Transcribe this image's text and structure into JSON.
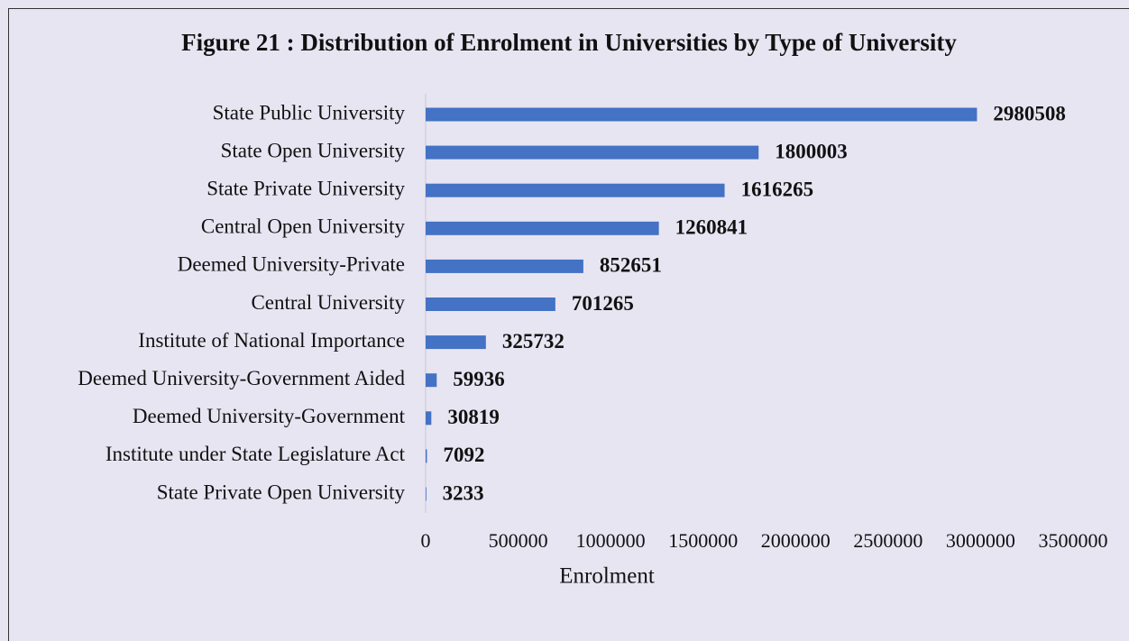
{
  "chart_data": {
    "type": "bar",
    "orientation": "horizontal",
    "title": "Figure 21 : Distribution of Enrolment in Universities by Type of University",
    "xlabel": "Enrolment",
    "categories": [
      "State Public University",
      "State Open University",
      "State Private University",
      "Central Open University",
      "Deemed University-Private",
      "Central University",
      "Institute of National Importance",
      "Deemed University-Government Aided",
      "Deemed University-Government",
      "Institute under State Legislature Act",
      "State Private Open University"
    ],
    "values": [
      2980508,
      1800003,
      1616265,
      1260841,
      852651,
      701265,
      325732,
      59936,
      30819,
      7092,
      3233
    ],
    "color": "#4472c4",
    "xlim": [
      0,
      3500000
    ],
    "xticks": [
      0,
      500000,
      1000000,
      1500000,
      2000000,
      2500000,
      3000000,
      3500000
    ],
    "grid": false
  }
}
